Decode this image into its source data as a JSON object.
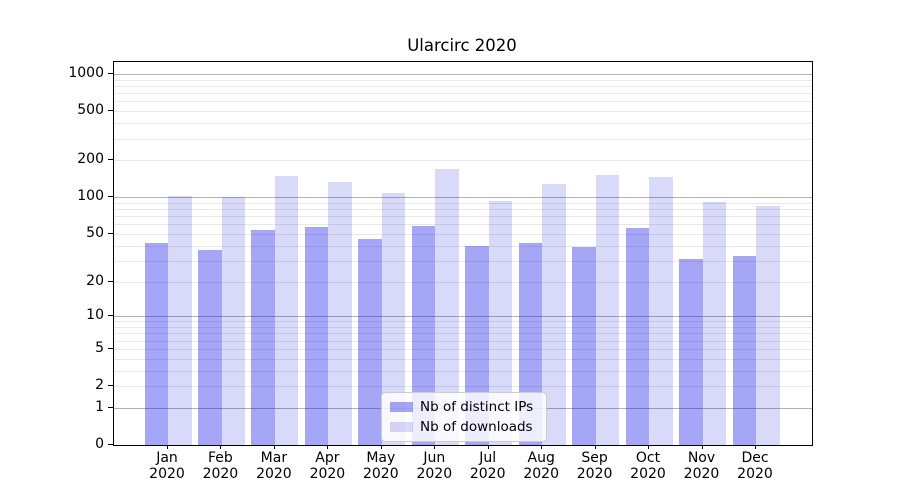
{
  "chart_data": {
    "type": "bar",
    "title": "Ularcirc 2020",
    "categories": [
      {
        "line1": "Jan",
        "line2": "2020"
      },
      {
        "line1": "Feb",
        "line2": "2020"
      },
      {
        "line1": "Mar",
        "line2": "2020"
      },
      {
        "line1": "Apr",
        "line2": "2020"
      },
      {
        "line1": "May",
        "line2": "2020"
      },
      {
        "line1": "Jun",
        "line2": "2020"
      },
      {
        "line1": "Jul",
        "line2": "2020"
      },
      {
        "line1": "Aug",
        "line2": "2020"
      },
      {
        "line1": "Sep",
        "line2": "2020"
      },
      {
        "line1": "Oct",
        "line2": "2020"
      },
      {
        "line1": "Nov",
        "line2": "2020"
      },
      {
        "line1": "Dec",
        "line2": "2020"
      }
    ],
    "series": [
      {
        "name": "Nb of distinct IPs",
        "color": "rgba(0,0,230,0.35)",
        "values": [
          42,
          37,
          54,
          57,
          45,
          58,
          40,
          42,
          39,
          56,
          31,
          33
        ]
      },
      {
        "name": "Nb of downloads",
        "color": "rgba(0,0,215,0.15)",
        "values": [
          103,
          100,
          150,
          133,
          108,
          170,
          93,
          129,
          152,
          146,
          92,
          84
        ]
      }
    ],
    "y_ticks": [
      0,
      1,
      2,
      5,
      10,
      20,
      50,
      100,
      200,
      500,
      1000
    ],
    "y_major_gridlines": [
      1,
      10,
      100,
      1000
    ],
    "y_scale": "log10(value+1)",
    "ylim": [
      0,
      1250
    ],
    "xlabel": "",
    "ylabel": "",
    "grid": "both",
    "legend_position": "lower center"
  }
}
